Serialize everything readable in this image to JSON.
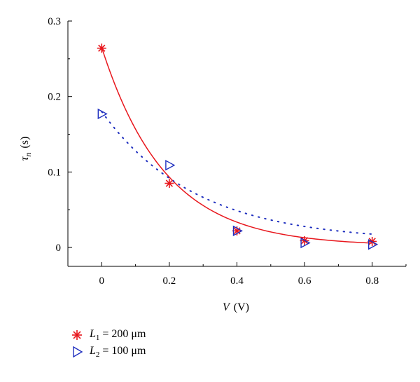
{
  "chart_data": {
    "type": "scatter",
    "xlabel": {
      "symbol": "V",
      "unit": "(V)"
    },
    "ylabel": {
      "symbol": "τ",
      "subscript": "n",
      "unit": "(s)"
    },
    "xlim": [
      -0.1,
      0.9
    ],
    "ylim": [
      -0.025,
      0.3
    ],
    "xticks": [
      0,
      0.2,
      0.4,
      0.6,
      0.8
    ],
    "xtick_labels": [
      "0",
      "0.2",
      "0.4",
      "0.6",
      "0.8"
    ],
    "yticks": [
      0,
      0.1,
      0.2,
      0.3
    ],
    "ytick_labels": [
      "0",
      "0.1",
      "0.2",
      "0.3"
    ],
    "grid": false,
    "legend_position": "bottom-left, below plot",
    "series": [
      {
        "legend": {
          "letter": "L",
          "subscript": "1",
          "rest": " = 200 μm"
        },
        "marker": "asterisk",
        "color": "#e8171d",
        "fit_style": "solid",
        "x": [
          0,
          0.2,
          0.4,
          0.6,
          0.8
        ],
        "y": [
          0.264,
          0.085,
          0.022,
          0.009,
          0.008
        ],
        "fit": {
          "model": "exponential",
          "a": 0.263,
          "b": 5.3,
          "c": 0.002
        }
      },
      {
        "legend": {
          "letter": "L",
          "subscript": "2",
          "rest": " = 100 μm"
        },
        "marker": "triangle-right",
        "color": "#1f2fbf",
        "fit_style": "dotted",
        "x": [
          0,
          0.2,
          0.4,
          0.6,
          0.8
        ],
        "y": [
          0.177,
          0.109,
          0.022,
          0.006,
          0.004
        ],
        "fit": {
          "model": "exponential",
          "a": 0.172,
          "b": 3.6,
          "c": 0.008
        }
      }
    ]
  }
}
